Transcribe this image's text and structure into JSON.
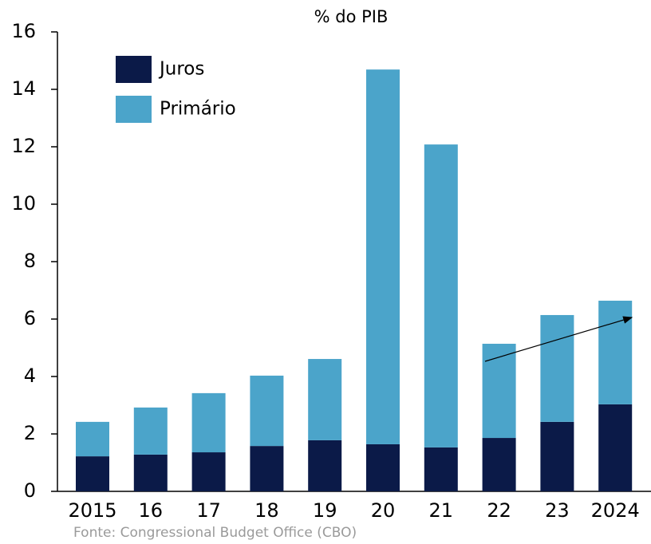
{
  "chart_data": {
    "type": "stacked_bar",
    "title": "% do PIB",
    "categories": [
      "2015",
      "16",
      "17",
      "18",
      "19",
      "20",
      "21",
      "22",
      "23",
      "2024"
    ],
    "series": [
      {
        "name": "Juros",
        "color": "#0b1a48",
        "values": [
          1.22,
          1.28,
          1.36,
          1.58,
          1.78,
          1.64,
          1.53,
          1.86,
          2.42,
          3.03
        ]
      },
      {
        "name": "Primário",
        "color": "#4ba4ca",
        "values": [
          1.2,
          1.64,
          2.06,
          2.45,
          2.83,
          13.05,
          10.55,
          3.28,
          3.72,
          3.61
        ]
      }
    ],
    "ylim": [
      0,
      16
    ],
    "yticks": [
      0,
      2,
      4,
      6,
      8,
      10,
      12,
      14,
      16
    ],
    "legend": "top-left",
    "source": "Fonte: Congressional Budget Office (CBO)"
  }
}
